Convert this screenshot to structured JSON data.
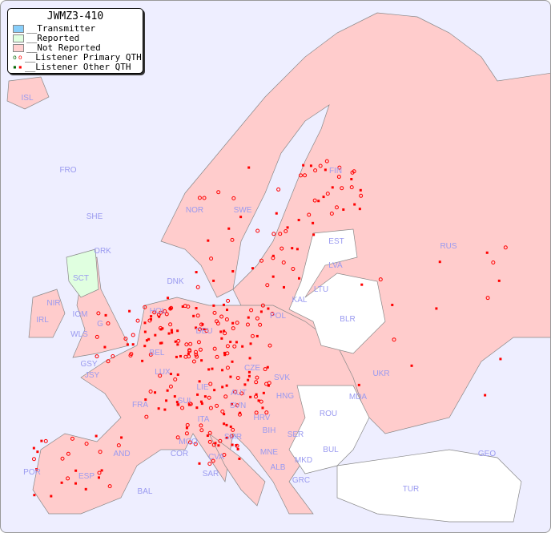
{
  "title": "JWMZ3-410",
  "legend": [
    {
      "label": "__Transmitter",
      "color": "#87cefa"
    },
    {
      "label": "__Reported",
      "color": "#e0ffe0"
    },
    {
      "label": "__Not Reported",
      "color": "#ffd0d0"
    },
    {
      "label": "__Listener Primary QTH",
      "marker": "open-circle",
      "colors": [
        "#006400",
        "#ff0000"
      ]
    },
    {
      "label": "__Listener Other QTH",
      "marker": "square",
      "colors": [
        "#006400",
        "#ff0000"
      ]
    }
  ],
  "colors": {
    "sea": "#eeeeff",
    "not_reported": "#ffcccc",
    "reported": "#e0ffe0",
    "no_data": "#ffffff",
    "listener": "#ff0000",
    "label": "#9a9af0"
  },
  "countries": [
    "ISL",
    "FRO",
    "SHE",
    "ORK",
    "NOR",
    "SWE",
    "FIN",
    "EST",
    "LVA",
    "RUS",
    "LTU",
    "KAL",
    "BLR",
    "DNK",
    "HOL",
    "DEU",
    "POL",
    "IRL",
    "NIR",
    "SCT",
    "IOM",
    "WLS",
    "G",
    "GSY",
    "JSY",
    "BEL",
    "LUX",
    "CZE",
    "SVK",
    "UKR",
    "FRA",
    "SUI",
    "LIE",
    "AUT",
    "HNG",
    "MDA",
    "ROU",
    "SVN",
    "HRV",
    "ITA",
    "BIH",
    "SER",
    "MCO",
    "COR",
    "AND",
    "CVA",
    "SMR",
    "MNE",
    "BUL",
    "ALB",
    "MKD",
    "GEO",
    "POR",
    "ESP",
    "SAR",
    "BAL",
    "GRC",
    "TUR"
  ]
}
